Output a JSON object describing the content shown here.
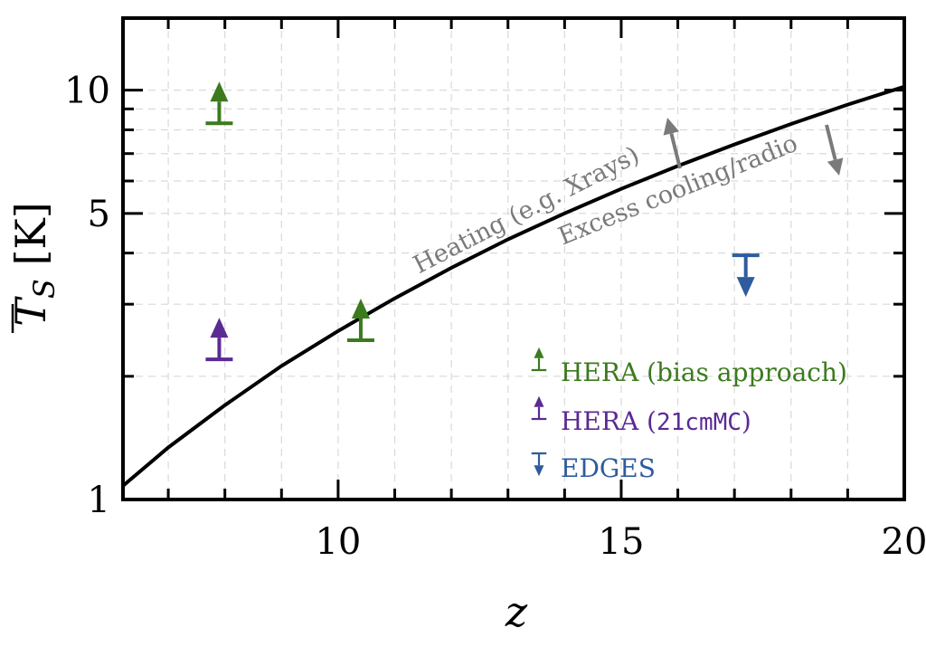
{
  "chart_data": {
    "type": "scatter",
    "xlabel": "z",
    "ylabel": {
      "main": "T",
      "sub": "S",
      "unit": " [K]"
    },
    "xlim": [
      6.2,
      20
    ],
    "ylim": [
      1,
      15
    ],
    "yscale": "log",
    "grid": true,
    "x_ticks": [
      10,
      15,
      20
    ],
    "x_ticks_labels": [
      "10",
      "15",
      "20"
    ],
    "x_minor_ticks": [
      7,
      8,
      9,
      11,
      12,
      13,
      14,
      16,
      17,
      18,
      19
    ],
    "y_ticks": [
      1,
      5,
      10
    ],
    "y_ticks_labels": [
      "1",
      "5",
      "10"
    ],
    "y_minor_ticks": [
      2,
      3,
      4,
      6,
      7,
      8,
      9
    ],
    "curve": {
      "x": [
        6.2,
        7,
        8,
        9,
        10,
        11,
        12,
        13,
        14,
        15,
        16,
        17,
        18,
        19,
        20
      ],
      "y": [
        1.08,
        1.34,
        1.7,
        2.12,
        2.58,
        3.1,
        3.68,
        4.32,
        5.0,
        5.74,
        6.53,
        7.37,
        8.27,
        9.22,
        10.2
      ],
      "color": "#000000"
    },
    "series": [
      {
        "name": "HERA (bias approach)",
        "kind": "lower-limit",
        "color": "#3c7a1e",
        "points": [
          {
            "x": 7.9,
            "y": 8.3
          },
          {
            "x": 10.4,
            "y": 2.45
          }
        ]
      },
      {
        "name": "HERA (21cmMC)",
        "kind": "lower-limit",
        "color": "#5b2a95",
        "points": [
          {
            "x": 7.9,
            "y": 2.2
          }
        ]
      },
      {
        "name": "EDGES",
        "kind": "upper-limit",
        "color": "#2e5c9e",
        "points": [
          {
            "x": 17.2,
            "y": 3.95
          }
        ]
      }
    ],
    "legend": {
      "placement": "bottom-right",
      "entries": [
        {
          "prefix": "HERA (bias approach)",
          "mono": "",
          "suffix": ""
        },
        {
          "prefix": "HERA (",
          "mono": "21cmMC",
          "suffix": ")"
        },
        {
          "prefix": "EDGES",
          "mono": "",
          "suffix": ""
        }
      ]
    },
    "annotations": {
      "heating": {
        "text": "Heating (e.g. Xrays)",
        "direction": "up",
        "color": "#7a7a7a"
      },
      "cooling": {
        "text": "Excess cooling/radio",
        "direction": "down",
        "color": "#7a7a7a"
      }
    }
  }
}
